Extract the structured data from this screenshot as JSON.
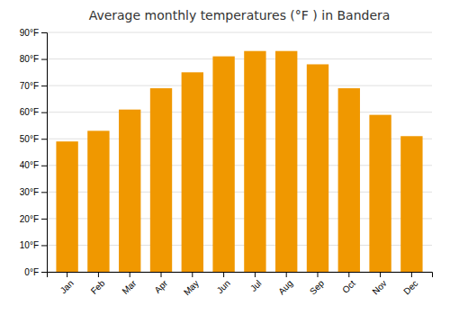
{
  "chart_data": {
    "type": "bar",
    "title": "Average monthly temperatures (°F ) in Bandera",
    "categories": [
      "Jan",
      "Feb",
      "Mar",
      "Apr",
      "May",
      "Jun",
      "Jul",
      "Aug",
      "Sep",
      "Oct",
      "Nov",
      "Dec"
    ],
    "values": [
      49,
      53,
      61,
      69,
      75,
      81,
      83,
      83,
      78,
      69,
      59,
      51
    ],
    "color": "#F09800",
    "ylim": [
      0,
      90
    ],
    "yticks": [
      {
        "value": 0,
        "label": "0°F"
      },
      {
        "value": 10,
        "label": "10°F"
      },
      {
        "value": 20,
        "label": "20°F"
      },
      {
        "value": 30,
        "label": "30°F"
      },
      {
        "value": 40,
        "label": "40°F"
      },
      {
        "value": 50,
        "label": "50°F"
      },
      {
        "value": 60,
        "label": "60°F"
      },
      {
        "value": 70,
        "label": "70°F"
      },
      {
        "value": 80,
        "label": "80°F"
      },
      {
        "value": 90,
        "label": "90°F"
      }
    ],
    "grid": true
  }
}
